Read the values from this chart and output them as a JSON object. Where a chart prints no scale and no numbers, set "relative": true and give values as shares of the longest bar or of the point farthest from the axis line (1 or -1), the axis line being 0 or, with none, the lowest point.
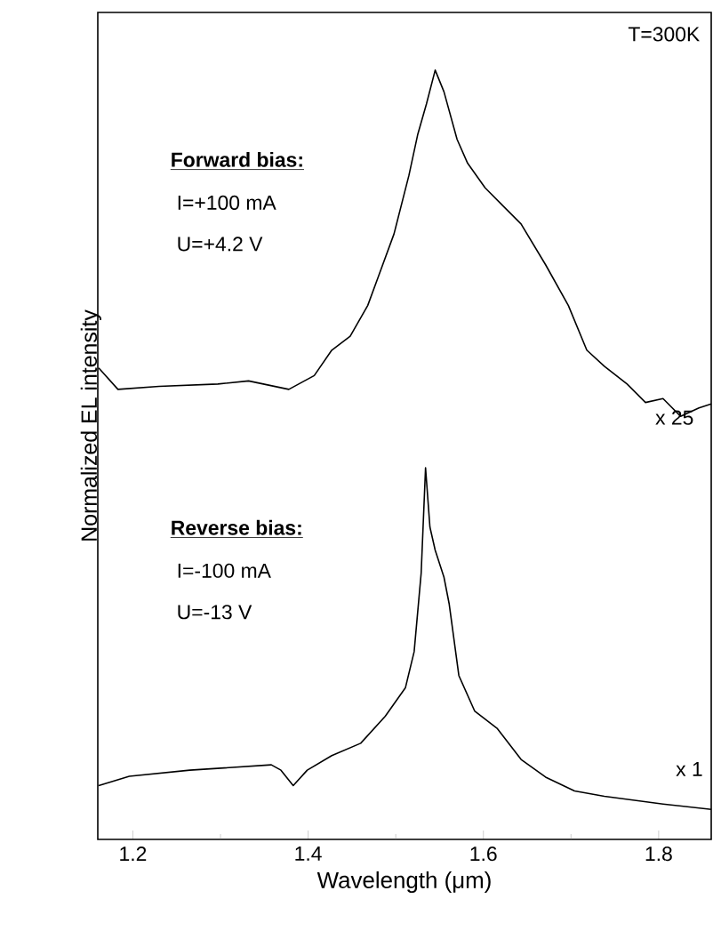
{
  "chart_data": {
    "type": "line",
    "relative": true,
    "xlabel": "Wavelength (μm)",
    "ylabel": "Normalized EL intensity",
    "xlim": [
      1.16,
      1.86
    ],
    "xticks": [
      1.2,
      {
        "value": 1.3,
        "label": null
      },
      1.4,
      {
        "value": 1.5,
        "label": null
      },
      1.6,
      {
        "value": 1.7,
        "label": null
      },
      1.8
    ],
    "annotations": [
      "T=300K",
      "**Forward bias:**",
      "I=+100 mA",
      "U=+4.2 V",
      "x 25",
      "**Reverse bias:**",
      "I=-100 mA",
      "U=-13 V",
      "x 1"
    ],
    "series": [
      {
        "color": "#000000",
        "x": [
          1.161,
          1.183,
          1.23,
          1.297,
          1.332,
          1.378,
          1.407,
          1.427,
          1.448,
          1.468,
          1.48,
          1.498,
          1.515,
          1.525,
          1.535,
          1.545,
          1.555,
          1.57,
          1.582,
          1.602,
          1.622,
          1.643,
          1.671,
          1.697,
          1.718,
          1.738,
          1.764,
          1.785,
          1.805,
          1.825,
          1.846,
          1.86
        ],
        "values": [
          0.613,
          0.585,
          0.589,
          0.592,
          0.596,
          0.585,
          0.603,
          0.636,
          0.654,
          0.694,
          0.731,
          0.787,
          0.863,
          0.916,
          0.956,
          1.0,
          0.972,
          0.91,
          0.879,
          0.847,
          0.824,
          0.8,
          0.747,
          0.694,
          0.636,
          0.615,
          0.592,
          0.568,
          0.573,
          0.55,
          0.561,
          0.566
        ]
      },
      {
        "color": "#000000",
        "x": [
          1.161,
          1.196,
          1.265,
          1.358,
          1.369,
          1.383,
          1.399,
          1.427,
          1.46,
          1.488,
          1.511,
          1.521,
          1.529,
          1.534,
          1.539,
          1.545,
          1.555,
          1.561,
          1.572,
          1.59,
          1.616,
          1.643,
          1.671,
          1.704,
          1.738,
          1.805,
          1.86
        ],
        "values": [
          0.07,
          0.082,
          0.09,
          0.097,
          0.09,
          0.07,
          0.09,
          0.109,
          0.125,
          0.16,
          0.197,
          0.244,
          0.346,
          0.483,
          0.406,
          0.376,
          0.341,
          0.306,
          0.213,
          0.167,
          0.144,
          0.104,
          0.081,
          0.063,
          0.056,
          0.046,
          0.039
        ]
      }
    ]
  }
}
